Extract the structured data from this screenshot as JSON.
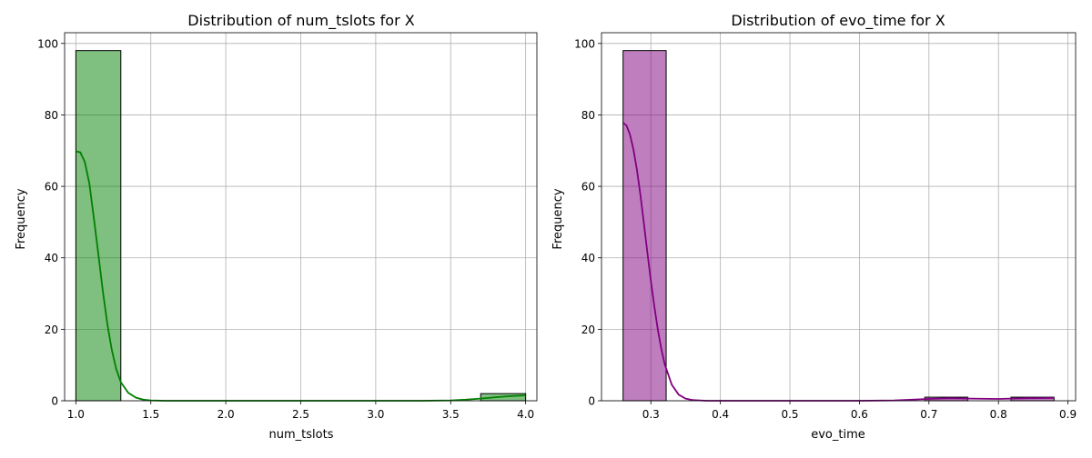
{
  "chart_data": [
    {
      "type": "bar",
      "title": "Distribution of num_tslots for X",
      "xlabel": "num_tslots",
      "ylabel": "Frequency",
      "xlim": [
        0.925,
        4.075
      ],
      "ylim": [
        0,
        103
      ],
      "xticks": [
        "1.0",
        "1.5",
        "2.0",
        "2.5",
        "3.0",
        "3.5",
        "4.0"
      ],
      "yticks": [
        "0",
        "20",
        "40",
        "60",
        "80",
        "100"
      ],
      "grid": true,
      "bar_color": "#008000",
      "kde_color": "#008000",
      "bins": [
        {
          "x0": 1.0,
          "x1": 1.3,
          "count": 98
        },
        {
          "x0": 1.3,
          "x1": 1.6,
          "count": 0
        },
        {
          "x0": 1.6,
          "x1": 1.9,
          "count": 0
        },
        {
          "x0": 1.9,
          "x1": 2.2,
          "count": 0
        },
        {
          "x0": 2.2,
          "x1": 2.5,
          "count": 0
        },
        {
          "x0": 2.5,
          "x1": 2.8,
          "count": 0
        },
        {
          "x0": 2.8,
          "x1": 3.1,
          "count": 0
        },
        {
          "x0": 3.1,
          "x1": 3.4,
          "count": 0
        },
        {
          "x0": 3.4,
          "x1": 3.7,
          "count": 0
        },
        {
          "x0": 3.7,
          "x1": 4.0,
          "count": 2
        }
      ],
      "kde": [
        [
          1.0,
          69.8
        ],
        [
          1.03,
          69.5
        ],
        [
          1.06,
          66.8
        ],
        [
          1.09,
          60.8
        ],
        [
          1.12,
          51.2
        ],
        [
          1.15,
          41.0
        ],
        [
          1.18,
          30.7
        ],
        [
          1.21,
          21.4
        ],
        [
          1.24,
          14.2
        ],
        [
          1.27,
          8.8
        ],
        [
          1.3,
          5.2
        ],
        [
          1.35,
          2.2
        ],
        [
          1.4,
          0.9
        ],
        [
          1.45,
          0.3
        ],
        [
          1.5,
          0.1
        ],
        [
          1.6,
          0.0
        ],
        [
          2.0,
          0.0
        ],
        [
          2.5,
          0.0
        ],
        [
          3.0,
          0.0
        ],
        [
          3.3,
          0.0
        ],
        [
          3.5,
          0.1
        ],
        [
          3.6,
          0.3
        ],
        [
          3.7,
          0.6
        ],
        [
          3.8,
          1.0
        ],
        [
          3.9,
          1.3
        ],
        [
          4.0,
          1.5
        ]
      ]
    },
    {
      "type": "bar",
      "title": "Distribution of evo_time for X",
      "xlabel": "evo_time",
      "ylabel": "Frequency",
      "xlim": [
        0.229,
        0.911
      ],
      "ylim": [
        0,
        103
      ],
      "xticks": [
        "0.3",
        "0.4",
        "0.5",
        "0.6",
        "0.7",
        "0.8",
        "0.9"
      ],
      "yticks": [
        "0",
        "20",
        "40",
        "60",
        "80",
        "100"
      ],
      "grid": true,
      "bar_color": "#800080",
      "kde_color": "#800080",
      "bins": [
        {
          "x0": 0.26,
          "x1": 0.322,
          "count": 98
        },
        {
          "x0": 0.322,
          "x1": 0.384,
          "count": 0
        },
        {
          "x0": 0.384,
          "x1": 0.446,
          "count": 0
        },
        {
          "x0": 0.446,
          "x1": 0.508,
          "count": 0
        },
        {
          "x0": 0.508,
          "x1": 0.57,
          "count": 0
        },
        {
          "x0": 0.57,
          "x1": 0.632,
          "count": 0
        },
        {
          "x0": 0.632,
          "x1": 0.694,
          "count": 0
        },
        {
          "x0": 0.694,
          "x1": 0.756,
          "count": 1
        },
        {
          "x0": 0.756,
          "x1": 0.818,
          "count": 0
        },
        {
          "x0": 0.818,
          "x1": 0.88,
          "count": 1
        }
      ],
      "kde": [
        [
          0.26,
          77.8
        ],
        [
          0.265,
          77.0
        ],
        [
          0.27,
          74.5
        ],
        [
          0.275,
          70.3
        ],
        [
          0.28,
          64.5
        ],
        [
          0.285,
          57.5
        ],
        [
          0.29,
          49.6
        ],
        [
          0.295,
          41.5
        ],
        [
          0.3,
          33.6
        ],
        [
          0.305,
          26.3
        ],
        [
          0.31,
          19.9
        ],
        [
          0.315,
          14.5
        ],
        [
          0.32,
          10.2
        ],
        [
          0.33,
          4.5
        ],
        [
          0.34,
          1.7
        ],
        [
          0.35,
          0.6
        ],
        [
          0.36,
          0.2
        ],
        [
          0.38,
          0.0
        ],
        [
          0.5,
          0.0
        ],
        [
          0.6,
          0.0
        ],
        [
          0.65,
          0.1
        ],
        [
          0.7,
          0.5
        ],
        [
          0.73,
          0.7
        ],
        [
          0.76,
          0.6
        ],
        [
          0.8,
          0.5
        ],
        [
          0.84,
          0.7
        ],
        [
          0.88,
          0.8
        ]
      ]
    }
  ]
}
